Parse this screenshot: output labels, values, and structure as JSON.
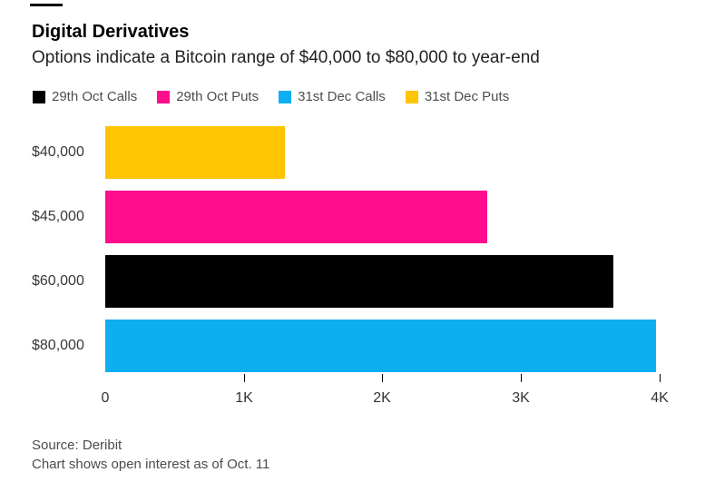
{
  "header": {
    "title": "Digital Derivatives",
    "subtitle": "Options indicate a Bitcoin range of $40,000 to $80,000 to year-end"
  },
  "legend": {
    "items": [
      {
        "label": "29th Oct Calls",
        "color": "#000000"
      },
      {
        "label": "29th Oct Puts",
        "color": "#ff0d8c"
      },
      {
        "label": "31st Dec Calls",
        "color": "#0eaff0"
      },
      {
        "label": "31st Dec Puts",
        "color": "#ffc402"
      }
    ]
  },
  "chart_data": {
    "type": "bar",
    "orientation": "horizontal",
    "title": "Digital Derivatives",
    "subtitle": "Options indicate a Bitcoin range of $40,000 to $80,000 to year-end",
    "categories": [
      "$40,000",
      "$45,000",
      "$60,000",
      "$80,000"
    ],
    "bars": [
      {
        "category": "$40,000",
        "series": "31st Dec Puts",
        "value": 1300,
        "color": "#ffc402"
      },
      {
        "category": "$45,000",
        "series": "29th Oct Puts",
        "value": 2760,
        "color": "#ff0d8c"
      },
      {
        "category": "$60,000",
        "series": "29th Oct Calls",
        "value": 3670,
        "color": "#000000"
      },
      {
        "category": "$80,000",
        "series": "31st Dec Calls",
        "value": 3980,
        "color": "#0eaff0"
      }
    ],
    "xlabel": "",
    "ylabel": "",
    "xlim": [
      0,
      4000
    ],
    "x_ticks": [
      {
        "label": "0",
        "value": 0
      },
      {
        "label": "1K",
        "value": 1000
      },
      {
        "label": "2K",
        "value": 2000
      },
      {
        "label": "3K",
        "value": 3000
      },
      {
        "label": "4K",
        "value": 4000
      }
    ],
    "grid": false,
    "legend_position": "top"
  },
  "footer": {
    "source": "Source: Deribit",
    "note": "Chart shows open interest as of Oct. 11"
  }
}
